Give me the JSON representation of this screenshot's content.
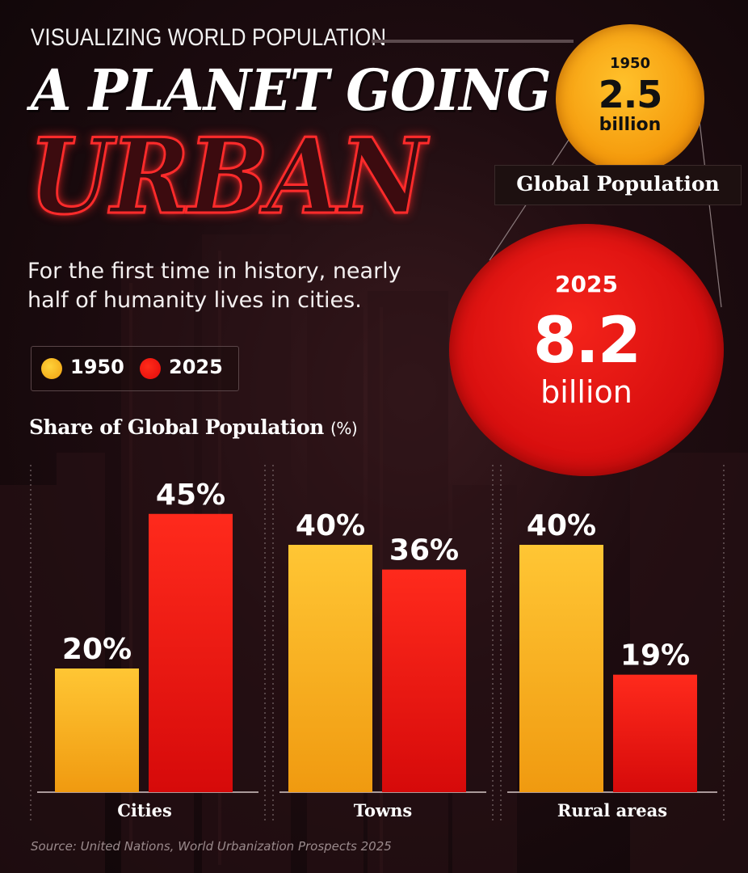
{
  "header": {
    "kicker": "VISUALIZING WORLD POPULATION",
    "title_line1": "A PLANET GOING",
    "title_line2": "URBAN",
    "subtitle": "For the first time in history, nearly half of humanity lives in cities."
  },
  "population": {
    "label": "Global Population",
    "p1950": {
      "year": "1950",
      "value": "2.5",
      "unit": "billion"
    },
    "p2025": {
      "year": "2025",
      "value": "8.2",
      "unit": "billion"
    }
  },
  "legend": {
    "y1950": "1950",
    "y2025": "2025"
  },
  "colors": {
    "y1950": "#f5a81a",
    "y2025": "#e81414",
    "accent": "#ff2b2b"
  },
  "chart_title": "Share of Global Population",
  "chart_title_unit": "(%)",
  "source": "Source: United Nations, World Urbanization Prospects 2025",
  "chart_data": {
    "type": "bar",
    "categories": [
      "Cities",
      "Towns",
      "Rural areas"
    ],
    "series": [
      {
        "name": "1950",
        "values": [
          20,
          40,
          40
        ],
        "color": "#f5a81a"
      },
      {
        "name": "2025",
        "values": [
          45,
          36,
          19
        ],
        "color": "#e81414"
      }
    ],
    "value_suffix": "%",
    "ylim": [
      0,
      50
    ],
    "grid": false,
    "legend": "top-left"
  }
}
